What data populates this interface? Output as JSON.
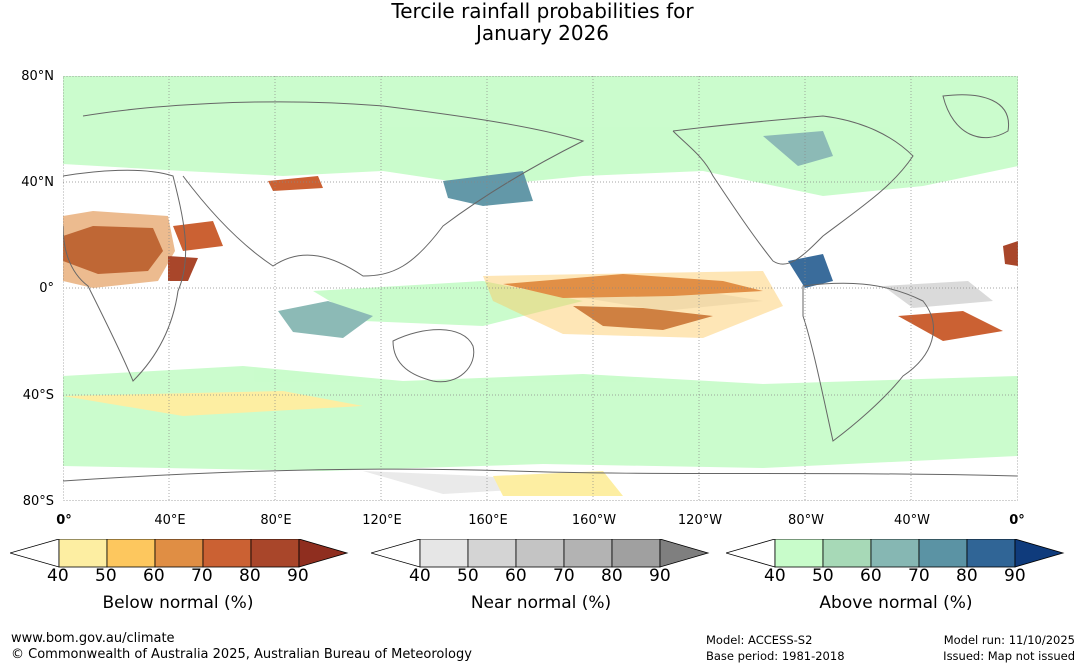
{
  "title": {
    "line1": "Tercile rainfall probabilities for",
    "line2": "January 2026"
  },
  "map": {
    "lat_labels": [
      "80°N",
      "40°N",
      "0°",
      "40°S",
      "80°S"
    ],
    "lon_labels": [
      "0°",
      "40°E",
      "80°E",
      "120°E",
      "160°E",
      "160°W",
      "120°W",
      "80°W",
      "40°W",
      "0°"
    ],
    "background_color": "#ffffff",
    "grid_color": "#888888",
    "coast_color": "#666666"
  },
  "colorbars": {
    "below": {
      "label": "Below normal (%)",
      "ticks": [
        "40",
        "50",
        "60",
        "70",
        "80",
        "90"
      ],
      "colors": [
        "#ffffff",
        "#fdeea2",
        "#fdc75e",
        "#e08e44",
        "#cb6133",
        "#a9462a",
        "#8f2e1f"
      ]
    },
    "near": {
      "label": "Near normal (%)",
      "ticks": [
        "40",
        "50",
        "60",
        "70",
        "80",
        "90"
      ],
      "colors": [
        "#ffffff",
        "#e6e6e6",
        "#d4d4d4",
        "#c4c4c4",
        "#b3b3b3",
        "#a0a0a0",
        "#7f7f7f"
      ]
    },
    "above": {
      "label": "Above normal (%)",
      "ticks": [
        "40",
        "50",
        "60",
        "70",
        "80",
        "90"
      ],
      "colors": [
        "#ffffff",
        "#c8fcca",
        "#a7d9b7",
        "#86b7b3",
        "#5b93a4",
        "#306596",
        "#0f3b7c"
      ]
    }
  },
  "footer": {
    "website": "www.bom.gov.au/climate",
    "copyright": "© Commonwealth of Australia 2025, Australian Bureau of Meteorology",
    "model": "Model: ACCESS-S2",
    "base_period": "Base period: 1981-2018",
    "model_run": "Model run: 11/10/2025",
    "issued": "Issued: Map not issued"
  }
}
